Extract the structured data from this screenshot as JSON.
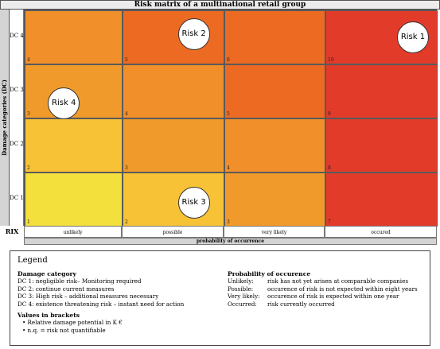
{
  "chart_data": {
    "type": "heatmap",
    "title": "Risk matrix of a multinational retail group",
    "ylabel": "Damage categories (DC)",
    "xlabel": "probability of occurrence",
    "corner_label": "RIX",
    "rows": [
      "DC 4",
      "DC 3",
      "DC 2",
      "DC 1"
    ],
    "columns": [
      "unlikely",
      "possible",
      "very likely",
      "occured"
    ],
    "cells": [
      [
        {
          "rix": "4",
          "color": "#f18f2a"
        },
        {
          "rix": "5",
          "color": "#ec6a22"
        },
        {
          "rix": "6",
          "color": "#ec6a22"
        },
        {
          "rix": "10",
          "color": "#e23b2a"
        }
      ],
      [
        {
          "rix": "3",
          "color": "#f19a2c"
        },
        {
          "rix": "4",
          "color": "#f18f2a"
        },
        {
          "rix": "5",
          "color": "#ec6a22"
        },
        {
          "rix": "9",
          "color": "#e23b2a"
        }
      ],
      [
        {
          "rix": "2",
          "color": "#f7c236"
        },
        {
          "rix": "3",
          "color": "#f19a2c"
        },
        {
          "rix": "4",
          "color": "#f18f2a"
        },
        {
          "rix": "8",
          "color": "#e23b2a"
        }
      ],
      [
        {
          "rix": "1",
          "color": "#f3e03c"
        },
        {
          "rix": "2",
          "color": "#f7c236"
        },
        {
          "rix": "3",
          "color": "#f19a2c"
        },
        {
          "rix": "7",
          "color": "#e23b2a"
        }
      ]
    ],
    "risks": [
      {
        "label": "Risk 1",
        "row": 0,
        "col": 3
      },
      {
        "label": "Risk 2",
        "row": 0,
        "col": 1
      },
      {
        "label": "Risk 3",
        "row": 3,
        "col": 1
      },
      {
        "label": "Risk 4",
        "row": 1,
        "col": 0
      }
    ]
  },
  "legend": {
    "title": "Legend",
    "damage": {
      "heading": "Damage category",
      "items": [
        "DC 1: negligible risk– Monitoring required",
        "DC 2: continue current measures",
        "DC 3: High risk – additional measures necessary",
        "DC 4: existence threatening risk – instant need for action"
      ]
    },
    "brackets": {
      "heading": "Values in brackets",
      "items": [
        "•    Relative damage potential in K €",
        "•    n.q. = risk not quantifiable"
      ]
    },
    "probability": {
      "heading": "Probability of occurence",
      "items": [
        {
          "term": "Unlikely:",
          "desc": "risk has not yet arisen at comparable companies"
        },
        {
          "term": "Possible:",
          "desc": "occurence  of risk is not expected within eight years"
        },
        {
          "term": "Very likely:",
          "desc": "occurence  of risk is expected within one year"
        },
        {
          "term": "Occurred:",
          "desc": "risk currently  occurred"
        }
      ]
    }
  }
}
